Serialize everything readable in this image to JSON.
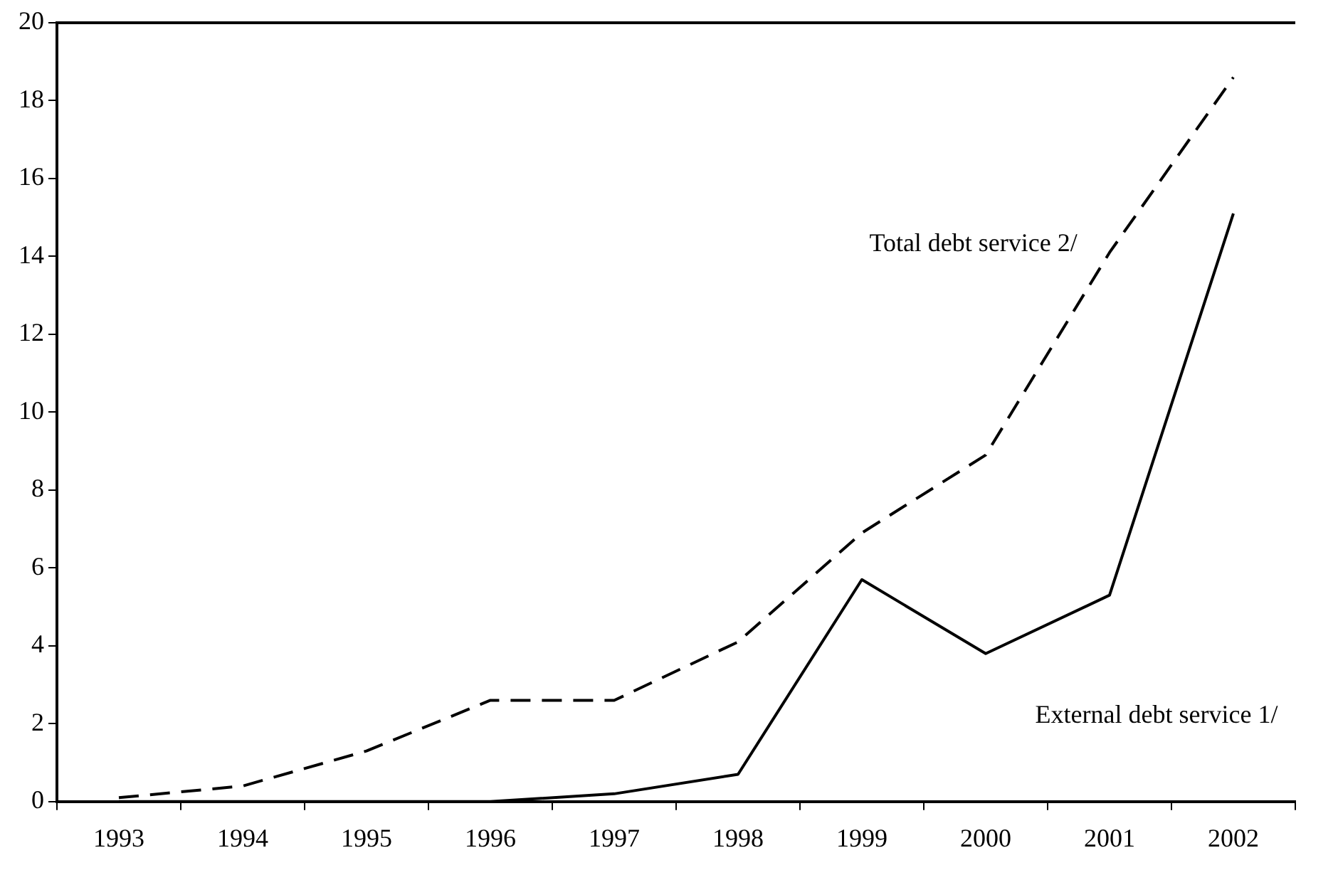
{
  "chart_data": {
    "type": "line",
    "categories": [
      "1993",
      "1994",
      "1995",
      "1996",
      "1997",
      "1998",
      "1999",
      "2000",
      "2001",
      "2002"
    ],
    "series": [
      {
        "name": "Total debt service 2/",
        "color": "#000000",
        "line_style": "dashed",
        "values": [
          0.1,
          0.4,
          1.3,
          2.6,
          2.6,
          4.1,
          6.9,
          8.9,
          14.1,
          18.6
        ]
      },
      {
        "name": "External debt service 1/",
        "color": "#000000",
        "line_style": "solid",
        "values": [
          0,
          0,
          0,
          0,
          0.2,
          0.7,
          5.7,
          3.8,
          5.3,
          15.1
        ]
      }
    ],
    "ylim": [
      0,
      20
    ],
    "yticks": [
      0,
      2,
      4,
      6,
      8,
      10,
      12,
      14,
      16,
      18,
      20
    ],
    "grid": false,
    "legend": false,
    "marker": "none"
  }
}
